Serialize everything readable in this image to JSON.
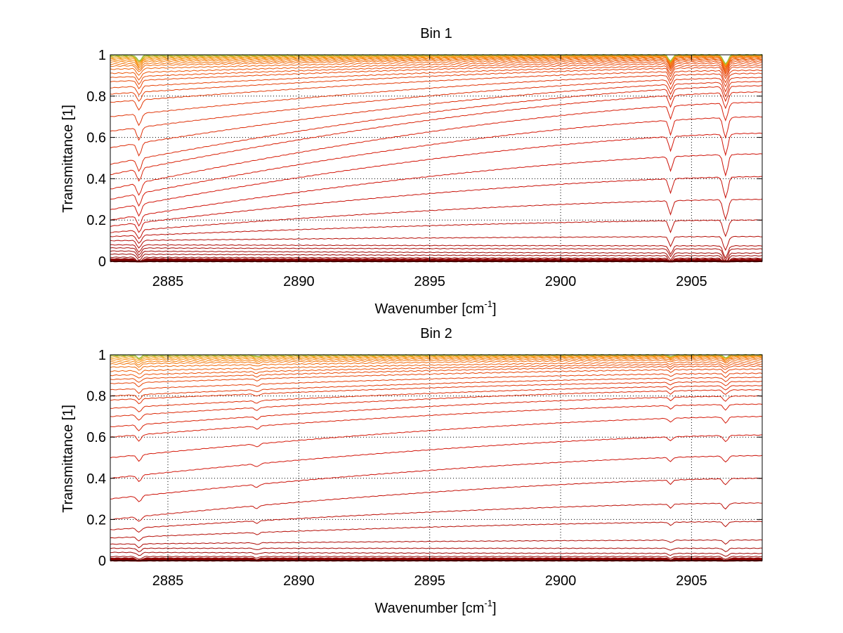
{
  "figure": {
    "background": "#ffffff"
  },
  "chart_data": [
    {
      "type": "line",
      "title": "Bin 1",
      "xlabel": "Wavenumber [cm",
      "xlabel_sup": "-1",
      "xlabel_end": "]",
      "ylabel": "Transmittance [1]",
      "xlim": [
        2882.8,
        2907.7
      ],
      "ylim": [
        0,
        1
      ],
      "xticks": [
        2885,
        2890,
        2895,
        2900,
        2905
      ],
      "xtick_labels": [
        "2885",
        "2890",
        "2895",
        "2900",
        "2905"
      ],
      "yticks": [
        0,
        0.2,
        0.4,
        0.6,
        0.8,
        1
      ],
      "ytick_labels": [
        "0",
        "0.2",
        "0.4",
        "0.6",
        "0.8",
        "1"
      ],
      "grid": true,
      "series_note": "dozens of transmittance spectra, color graded from dark red (low) to orange/green (near 1)",
      "baselines_start": [
        0.0,
        0.005,
        0.01,
        0.02,
        0.035,
        0.05,
        0.065,
        0.08,
        0.1,
        0.12,
        0.14,
        0.17,
        0.2,
        0.25,
        0.3,
        0.35,
        0.42,
        0.47,
        0.55,
        0.63,
        0.7,
        0.77,
        0.81,
        0.84,
        0.87,
        0.89,
        0.91,
        0.93,
        0.945,
        0.955,
        0.965,
        0.973,
        0.98,
        0.986,
        0.991,
        0.995,
        0.998
      ],
      "baselines_end": [
        0.0,
        0.004,
        0.008,
        0.015,
        0.027,
        0.04,
        0.06,
        0.075,
        0.12,
        0.2,
        0.3,
        0.41,
        0.52,
        0.62,
        0.7,
        0.77,
        0.82,
        0.85,
        0.87,
        0.89,
        0.91,
        0.925,
        0.94,
        0.95,
        0.96,
        0.968,
        0.975,
        0.98,
        0.985,
        0.989,
        0.992,
        0.994,
        0.996,
        0.997,
        0.998,
        0.999,
        1.0
      ],
      "absorption_lines": [
        {
          "x": 2883.9,
          "depth": 0.06,
          "width": 0.12
        },
        {
          "x": 2904.2,
          "depth": 0.07,
          "width": 0.1
        },
        {
          "x": 2906.3,
          "depth": 0.1,
          "width": 0.12
        }
      ]
    },
    {
      "type": "line",
      "title": "Bin 2",
      "xlabel": "Wavenumber [cm",
      "xlabel_sup": "-1",
      "xlabel_end": "]",
      "ylabel": "Transmittance [1]",
      "xlim": [
        2882.8,
        2907.7
      ],
      "ylim": [
        0,
        1
      ],
      "xticks": [
        2885,
        2890,
        2895,
        2900,
        2905
      ],
      "xtick_labels": [
        "2885",
        "2890",
        "2895",
        "2900",
        "2905"
      ],
      "yticks": [
        0,
        0.2,
        0.4,
        0.6,
        0.8,
        1
      ],
      "ytick_labels": [
        "0",
        "0.2",
        "0.4",
        "0.6",
        "0.8",
        "1"
      ],
      "grid": true,
      "series_note": "dozens of transmittance spectra, color graded from dark red (low) to orange/green (near 1)",
      "baselines_start": [
        0.0,
        0.005,
        0.01,
        0.02,
        0.04,
        0.06,
        0.08,
        0.11,
        0.15,
        0.2,
        0.3,
        0.4,
        0.5,
        0.6,
        0.65,
        0.7,
        0.74,
        0.78,
        0.8,
        0.83,
        0.86,
        0.88,
        0.9,
        0.92,
        0.94,
        0.955,
        0.965,
        0.975,
        0.983,
        0.99,
        0.995,
        0.998
      ],
      "baselines_end": [
        0.0,
        0.004,
        0.01,
        0.02,
        0.035,
        0.06,
        0.1,
        0.19,
        0.28,
        0.4,
        0.51,
        0.61,
        0.7,
        0.76,
        0.8,
        0.83,
        0.85,
        0.87,
        0.89,
        0.91,
        0.93,
        0.945,
        0.955,
        0.965,
        0.975,
        0.982,
        0.988,
        0.992,
        0.995,
        0.997,
        0.999,
        1.0
      ],
      "absorption_lines": [
        {
          "x": 2883.9,
          "depth": 0.03,
          "width": 0.12
        },
        {
          "x": 2888.4,
          "depth": 0.015,
          "width": 0.12
        },
        {
          "x": 2904.2,
          "depth": 0.02,
          "width": 0.1
        },
        {
          "x": 2906.3,
          "depth": 0.03,
          "width": 0.12
        }
      ]
    }
  ]
}
